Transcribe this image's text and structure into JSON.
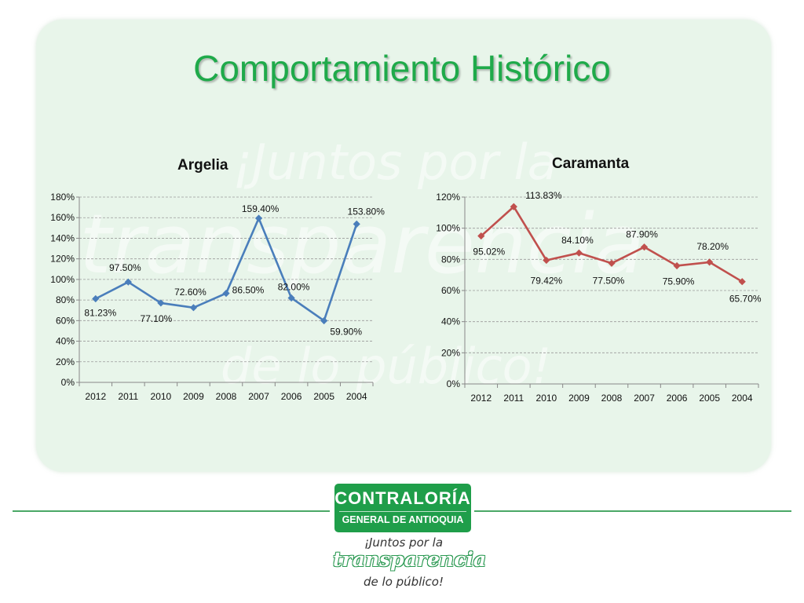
{
  "page": {
    "title": "Comportamiento Histórico"
  },
  "watermark": {
    "line1": "¡Juntos por la",
    "line2": "transparencia",
    "line3": "de lo público!"
  },
  "colors": {
    "accent": "#1faa4a",
    "series_argelia": "#4a7ebb",
    "series_caramanta": "#c0504d",
    "panel_bg": "#e8f5ea"
  },
  "chart_data": [
    {
      "type": "line",
      "title": "Argelia",
      "categories": [
        "2012",
        "2011",
        "2010",
        "2009",
        "2008",
        "2007",
        "2006",
        "2005",
        "2004"
      ],
      "series": [
        {
          "values": [
            81.23,
            97.5,
            77.1,
            72.6,
            86.5,
            159.4,
            82.0,
            59.9,
            153.8
          ]
        }
      ],
      "data_labels": [
        "81.23%",
        "97.50%",
        "77.10%",
        "72.60%",
        "86.50%",
        "159.40%",
        "82.00%",
        "59.90%",
        "153.80%"
      ],
      "ylim": [
        0,
        180
      ],
      "yticks": [
        "0%",
        "20%",
        "40%",
        "60%",
        "80%",
        "100%",
        "120%",
        "140%",
        "160%",
        "180%"
      ],
      "grid": true,
      "color": "#4a7ebb"
    },
    {
      "type": "line",
      "title": "Caramanta",
      "categories": [
        "2012",
        "2011",
        "2010",
        "2009",
        "2008",
        "2007",
        "2006",
        "2005",
        "2004"
      ],
      "series": [
        {
          "values": [
            95.02,
            113.83,
            79.42,
            84.1,
            77.5,
            87.9,
            75.9,
            78.2,
            65.7
          ]
        }
      ],
      "data_labels": [
        "95.02%",
        "113.83%",
        "79.42%",
        "84.10%",
        "77.50%",
        "87.90%",
        "75.90%",
        "78.20%",
        "65.70%"
      ],
      "ylim": [
        0,
        120
      ],
      "yticks": [
        "0%",
        "20%",
        "40%",
        "60%",
        "80%",
        "100%",
        "120%"
      ],
      "grid": true,
      "color": "#c0504d"
    }
  ],
  "logo": {
    "line1": "CONTRALORÍA",
    "line2": "GENERAL DE ANTIOQUIA",
    "tag1": "¡Juntos por la",
    "tag2": "transparencia",
    "tag3": "de lo público!"
  }
}
